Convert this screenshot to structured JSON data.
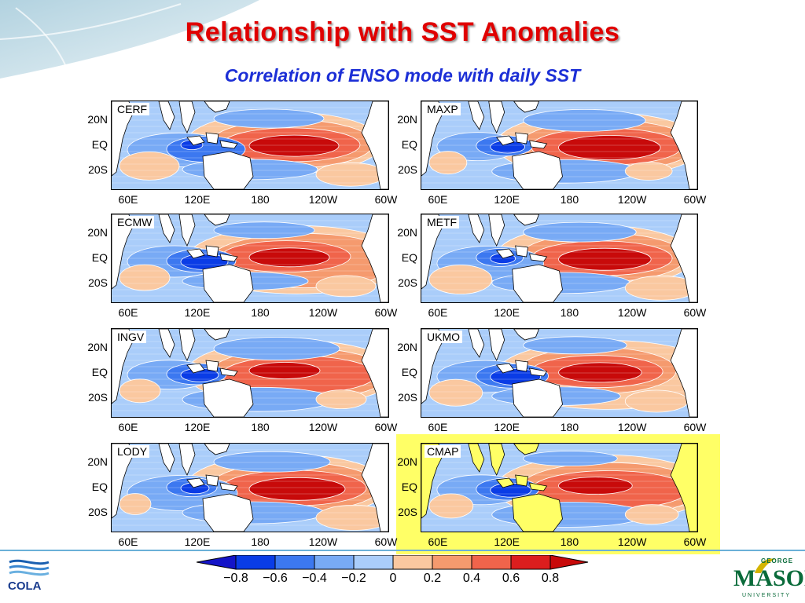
{
  "title": "Relationship with SST Anomalies",
  "subtitle": "Correlation of ENSO mode with daily SST",
  "lat_labels": [
    "20N",
    "EQ",
    "20S"
  ],
  "lon_labels": [
    "60E",
    "120E",
    "180",
    "120W",
    "60W"
  ],
  "panels": [
    {
      "label": "CERF"
    },
    {
      "label": "MAXP"
    },
    {
      "label": "ECMW"
    },
    {
      "label": "METF"
    },
    {
      "label": "INGV"
    },
    {
      "label": "UKMO"
    },
    {
      "label": "LODY"
    },
    {
      "label": "CMAP"
    }
  ],
  "colorbar": {
    "labels": [
      "−0.8",
      "−0.6",
      "−0.4",
      "−0.2",
      "0",
      "0.2",
      "0.4",
      "0.6",
      "0.8"
    ],
    "colors": [
      "#1414c8",
      "#0a3ce6",
      "#3c78f0",
      "#78aaf5",
      "#aacdfa",
      "#fac8a0",
      "#f59a6e",
      "#f0644b",
      "#dc1e1e",
      "#c80a0a"
    ]
  },
  "logos": {
    "cola": "COLA",
    "gmu_george": "GEORGE",
    "gmu_mason": "MASON",
    "gmu_university": "UNIVERSITY"
  }
}
